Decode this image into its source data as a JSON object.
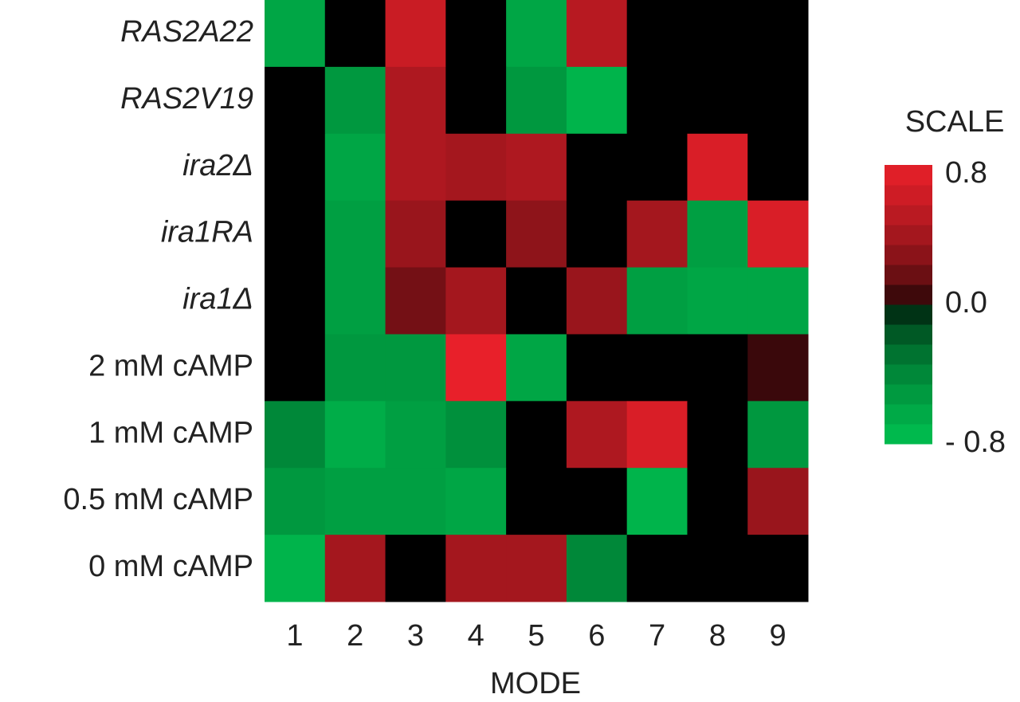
{
  "chart_data": {
    "type": "heatmap",
    "rows": [
      "RAS2A22",
      "RAS2V19",
      "ira2Δ",
      "ira1RA",
      "ira1Δ",
      "2 mM cAMP",
      "1 mM cAMP",
      "0.5 mM cAMP",
      "0 mM cAMP"
    ],
    "categories": [
      "1",
      "2",
      "3",
      "4",
      "5",
      "6",
      "7",
      "8",
      "9"
    ],
    "values": [
      [
        -0.6,
        0,
        0.6,
        0,
        -0.6,
        0.5,
        0,
        0,
        0
      ],
      [
        0,
        -0.5,
        0.45,
        0,
        -0.5,
        -0.7,
        0,
        0,
        0
      ],
      [
        0,
        -0.6,
        0.45,
        0.4,
        0.45,
        0,
        0,
        0.7,
        0
      ],
      [
        0,
        -0.55,
        0.35,
        0,
        0.3,
        0,
        0.4,
        -0.55,
        0.7
      ],
      [
        0,
        -0.55,
        0.2,
        0.4,
        0,
        0.35,
        -0.55,
        -0.6,
        -0.6
      ],
      [
        0,
        -0.5,
        -0.5,
        0.8,
        -0.6,
        0,
        0,
        0,
        0.05
      ],
      [
        -0.4,
        -0.65,
        -0.55,
        -0.45,
        0,
        0.45,
        0.7,
        0,
        -0.5
      ],
      [
        -0.5,
        -0.55,
        -0.55,
        -0.6,
        0,
        0,
        -0.7,
        0,
        0.35
      ],
      [
        -0.7,
        0.4,
        0,
        0.4,
        0.4,
        -0.4,
        0,
        0,
        0
      ]
    ],
    "x_label": "MODE",
    "colorbar_title": "SCALE",
    "clim": [
      -0.8,
      0.8
    ],
    "cticks": [
      {
        "value": -0.8,
        "label": "- 0.8"
      },
      {
        "value": 0,
        "label": "0.0"
      },
      0.8
    ],
    "colors": {
      "low": "#00c050",
      "mid": "#000000",
      "high": "#e8202a"
    }
  }
}
